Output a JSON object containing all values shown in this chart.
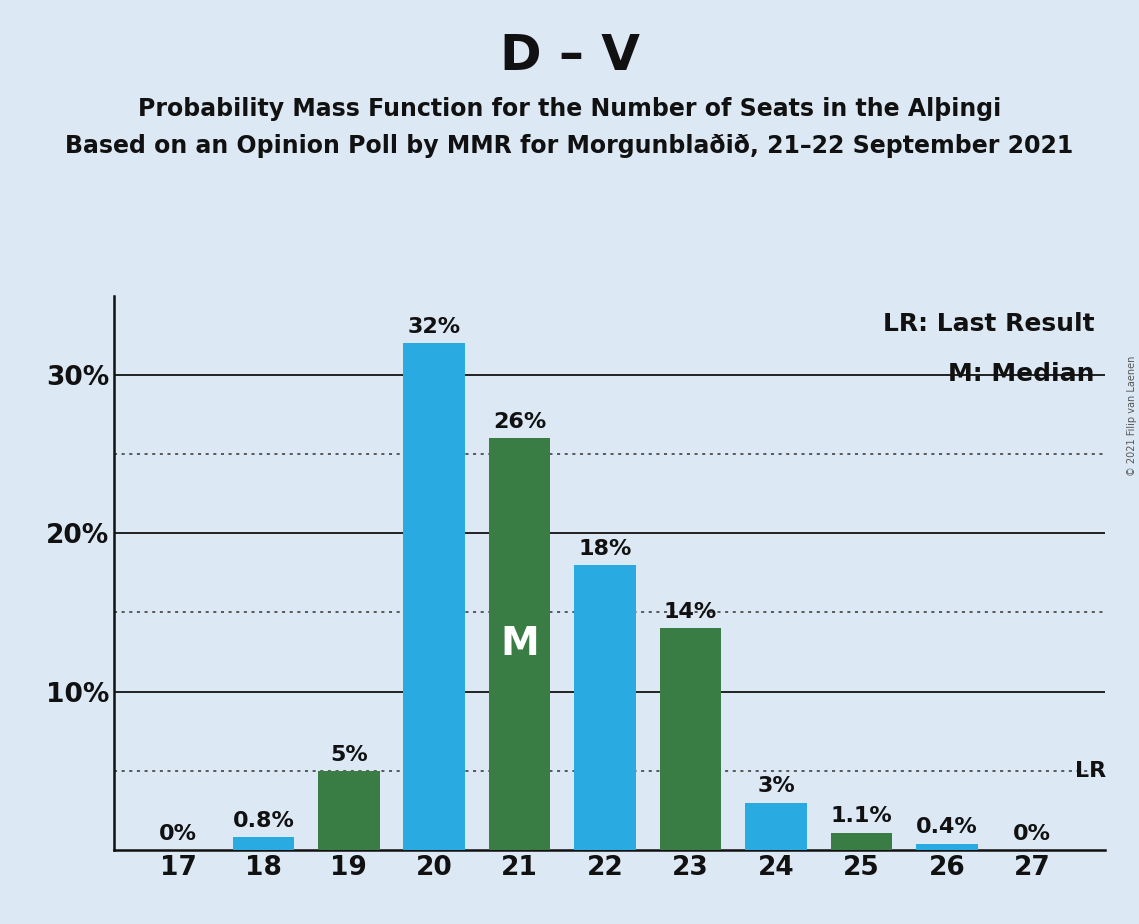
{
  "title": "D – V",
  "subtitle1": "Probability Mass Function for the Number of Seats in the Alþingi",
  "subtitle2": "Based on an Opinion Poll by MMR for Morgunblaðið, 21–22 September 2021",
  "copyright": "© 2021 Filip van Laenen",
  "legend1": "LR: Last Result",
  "legend2": "M: Median",
  "x_values": [
    17,
    18,
    19,
    20,
    21,
    22,
    23,
    24,
    25,
    26,
    27
  ],
  "values": [
    0,
    0.8,
    5,
    32,
    26,
    18,
    14,
    3,
    1.1,
    0.4,
    0
  ],
  "colors": [
    "#29ABE2",
    "#29ABE2",
    "#3A7D44",
    "#29ABE2",
    "#3A7D44",
    "#29ABE2",
    "#3A7D44",
    "#29ABE2",
    "#3A7D44",
    "#29ABE2",
    "#29ABE2"
  ],
  "labels": [
    "0%",
    "0.8%",
    "5%",
    "32%",
    "26%",
    "18%",
    "14%",
    "3%",
    "1.1%",
    "0.4%",
    "0%"
  ],
  "median_bar": 21,
  "lr_bar": 27,
  "background_color": "#DCE9F5",
  "solid_gridlines": [
    10,
    20,
    30
  ],
  "dotted_gridlines": [
    5,
    15,
    25
  ],
  "ylim": [
    0,
    35
  ],
  "ytick_positions": [
    10,
    20,
    30
  ],
  "ytick_labels": [
    "10%",
    "20%",
    "30%"
  ],
  "title_fontsize": 36,
  "subtitle_fontsize": 17,
  "label_fontsize": 16,
  "tick_fontsize": 19,
  "legend_fontsize": 18,
  "median_fontsize": 28,
  "bar_width": 0.72
}
